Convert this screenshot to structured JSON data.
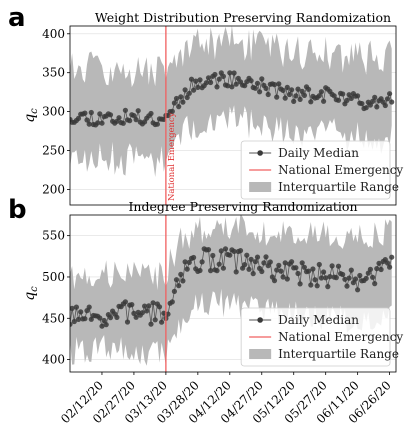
{
  "colors": {
    "band": "#b8b8b8",
    "points": "#3a3a3a",
    "line": "#555555",
    "emergency": "#f06060",
    "grid": "#dddddd"
  },
  "chart_data": [
    {
      "type": "line",
      "panel_letter": "a",
      "title": "Weight Distribution Preserving Randomization",
      "xlabel": "",
      "ylabel": "q_c",
      "ylim": [
        180,
        410
      ],
      "yticks": [
        200,
        250,
        300,
        350,
        400
      ],
      "x_range": [
        "2020-01-28",
        "2020-06-29"
      ],
      "emergency_date": "2020-03-13",
      "emergency_annotation": "National Emergency",
      "legend": {
        "placement": "lower-right",
        "entries": [
          "Daily Median",
          "National Emergency",
          "Interquartile Range"
        ]
      },
      "seed": 11,
      "series": [
        {
          "name": "Daily Median",
          "segments": [
            [
              "2020-01-28",
              295
            ],
            [
              "2020-02-10",
              292
            ],
            [
              "2020-02-25",
              292
            ],
            [
              "2020-03-12",
              292
            ],
            [
              "2020-03-20",
              318
            ],
            [
              "2020-03-28",
              340
            ],
            [
              "2020-04-12",
              342
            ],
            [
              "2020-04-27",
              333
            ],
            [
              "2020-05-12",
              322
            ],
            [
              "2020-05-27",
              322
            ],
            [
              "2020-06-11",
              313
            ],
            [
              "2020-06-27",
              318
            ]
          ],
          "jitter": 10
        },
        {
          "name": "Interquartile Range",
          "q1": [
            [
              "2020-01-28",
              238
            ],
            [
              "2020-02-12",
              240
            ],
            [
              "2020-02-27",
              238
            ],
            [
              "2020-03-12",
              238
            ],
            [
              "2020-03-20",
              265
            ],
            [
              "2020-03-28",
              288
            ],
            [
              "2020-04-12",
              290
            ],
            [
              "2020-04-27",
              280
            ],
            [
              "2020-05-12",
              272
            ],
            [
              "2020-05-27",
              272
            ],
            [
              "2020-06-11",
              268
            ],
            [
              "2020-06-27",
              262
            ]
          ],
          "q3": [
            [
              "2020-01-28",
              360
            ],
            [
              "2020-02-12",
              355
            ],
            [
              "2020-02-27",
              352
            ],
            [
              "2020-03-12",
              352
            ],
            [
              "2020-03-20",
              372
            ],
            [
              "2020-03-28",
              385
            ],
            [
              "2020-04-12",
              390
            ],
            [
              "2020-04-27",
              382
            ],
            [
              "2020-05-12",
              376
            ],
            [
              "2020-05-27",
              376
            ],
            [
              "2020-06-11",
              368
            ],
            [
              "2020-06-27",
              372
            ]
          ],
          "jitter": 22
        }
      ]
    },
    {
      "type": "line",
      "panel_letter": "b",
      "title": "Indegree Preserving Randomization",
      "xlabel": "",
      "ylabel": "q_c",
      "ylim": [
        385,
        575
      ],
      "yticks": [
        400,
        450,
        500,
        550
      ],
      "x_range": [
        "2020-01-28",
        "2020-06-29"
      ],
      "xticks": [
        "02/12/20",
        "02/27/20",
        "03/13/20",
        "03/28/20",
        "04/12/20",
        "04/27/20",
        "05/12/20",
        "05/27/20",
        "06/11/20",
        "06/26/20"
      ],
      "emergency_date": "2020-03-13",
      "legend": {
        "placement": "lower-right",
        "entries": [
          "Daily Median",
          "National Emergency",
          "Interquartile Range"
        ]
      },
      "seed": 7,
      "series": [
        {
          "name": "Daily Median",
          "segments": [
            [
              "2020-01-28",
              450
            ],
            [
              "2020-02-12",
              450
            ],
            [
              "2020-02-27",
              460
            ],
            [
              "2020-03-12",
              452
            ],
            [
              "2020-03-20",
              505
            ],
            [
              "2020-03-28",
              520
            ],
            [
              "2020-04-12",
              522
            ],
            [
              "2020-04-27",
              512
            ],
            [
              "2020-05-12",
              505
            ],
            [
              "2020-05-27",
              502
            ],
            [
              "2020-06-11",
              495
            ],
            [
              "2020-06-27",
              510
            ]
          ],
          "jitter": 14
        },
        {
          "name": "Interquartile Range",
          "q1": [
            [
              "2020-01-28",
              410
            ],
            [
              "2020-02-12",
              412
            ],
            [
              "2020-02-27",
              410
            ],
            [
              "2020-03-12",
              405
            ],
            [
              "2020-03-20",
              445
            ],
            [
              "2020-03-28",
              465
            ],
            [
              "2020-04-12",
              470
            ],
            [
              "2020-04-27",
              462
            ],
            [
              "2020-05-12",
              455
            ],
            [
              "2020-05-27",
              452
            ],
            [
              "2020-06-11",
              448
            ],
            [
              "2020-06-27",
              458
            ]
          ],
          "q3": [
            [
              "2020-01-28",
              500
            ],
            [
              "2020-02-12",
              505
            ],
            [
              "2020-02-27",
              505
            ],
            [
              "2020-03-12",
              500
            ],
            [
              "2020-03-20",
              545
            ],
            [
              "2020-03-28",
              558
            ],
            [
              "2020-04-12",
              562
            ],
            [
              "2020-04-27",
              555
            ],
            [
              "2020-05-12",
              552
            ],
            [
              "2020-05-27",
              550
            ],
            [
              "2020-06-11",
              546
            ],
            [
              "2020-06-27",
              558
            ]
          ],
          "jitter": 18
        }
      ]
    }
  ]
}
